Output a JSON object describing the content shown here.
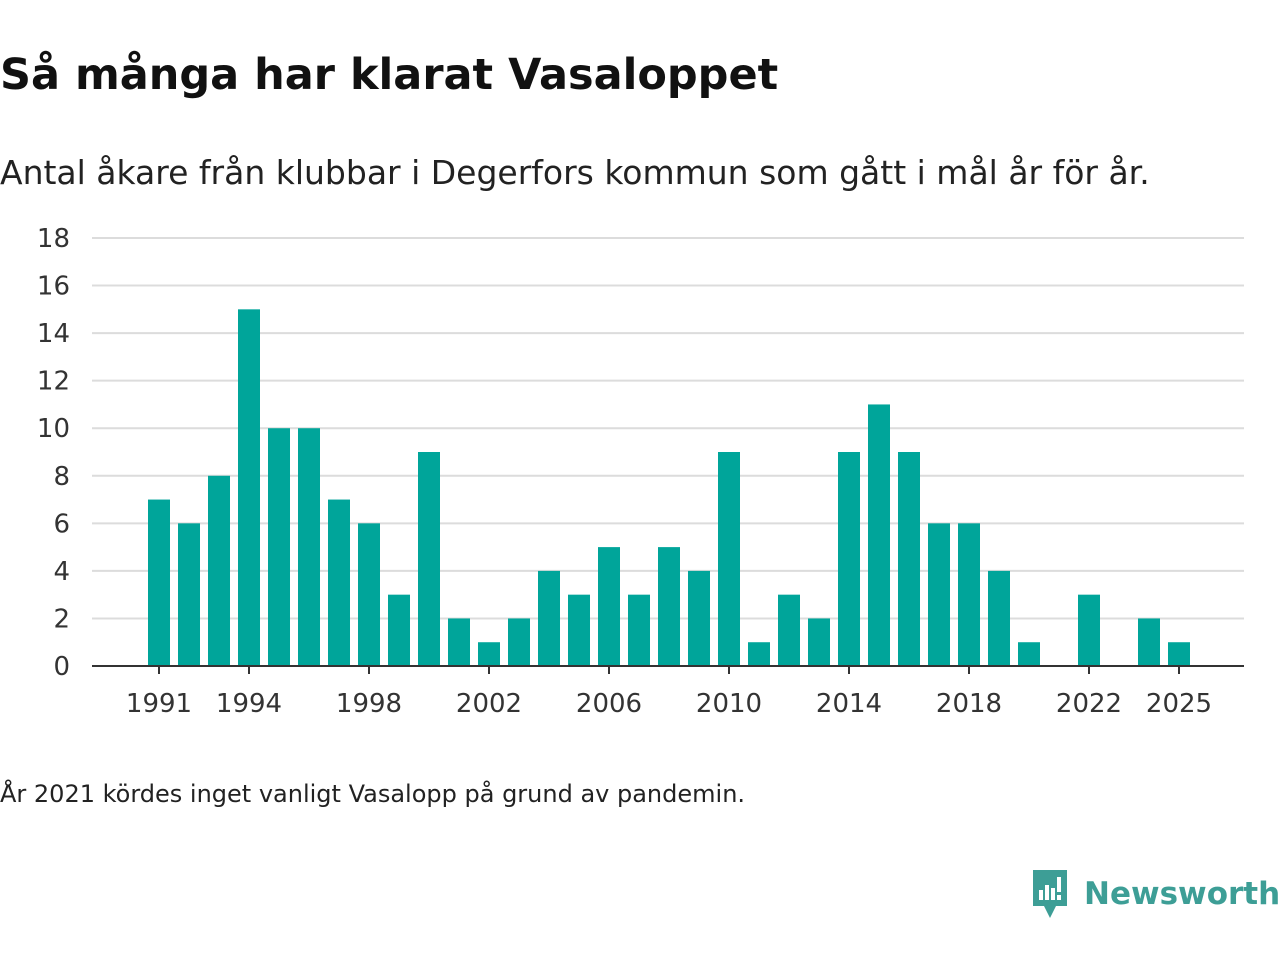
{
  "title": "Så många har klarat Vasaloppet",
  "subtitle": "Antal åkare från klubbar i Degerfors kommun som gått i mål år för år.",
  "note": "År 2021 kördes inget vanligt Vasalopp på grund av pandemin.",
  "logo": {
    "text": "Newsworthy",
    "icon": "newsworthy-logo-icon"
  },
  "colors": {
    "bar": "#00a59a",
    "grid": "#dcdcdc",
    "axis": "#333333",
    "logo": "#3d9e96"
  },
  "chart_data": {
    "type": "bar",
    "title": "Så många har klarat Vasaloppet",
    "subtitle": "Antal åkare från klubbar i Degerfors kommun som gått i mål år för år.",
    "xlabel": "",
    "ylabel": "",
    "ylim": [
      0,
      18
    ],
    "yticks": [
      0,
      2,
      4,
      6,
      8,
      10,
      12,
      14,
      16,
      18
    ],
    "xticks": [
      "1991",
      "1994",
      "1998",
      "2002",
      "2006",
      "2010",
      "2014",
      "2018",
      "2022",
      "2025"
    ],
    "grid": true,
    "categories": [
      1991,
      1992,
      1993,
      1994,
      1995,
      1996,
      1997,
      1998,
      1999,
      2000,
      2001,
      2002,
      2003,
      2004,
      2005,
      2006,
      2007,
      2008,
      2009,
      2010,
      2011,
      2012,
      2013,
      2014,
      2015,
      2016,
      2017,
      2018,
      2019,
      2020,
      2021,
      2022,
      2023,
      2024,
      2025
    ],
    "values": [
      7,
      6,
      8,
      15,
      10,
      10,
      7,
      6,
      3,
      9,
      2,
      1,
      2,
      4,
      3,
      5,
      3,
      5,
      4,
      9,
      1,
      3,
      2,
      9,
      11,
      9,
      6,
      6,
      4,
      1,
      0,
      3,
      0,
      2,
      1
    ]
  }
}
